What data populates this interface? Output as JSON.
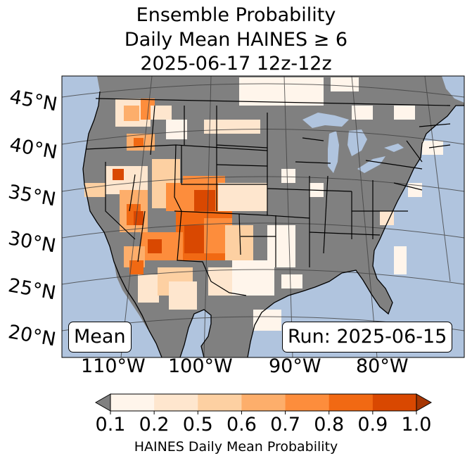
{
  "title": {
    "line1": "Ensemble Probability",
    "line2": "Daily Mean HAINES ≥ 6",
    "line3": "2025-06-17 12z-12z"
  },
  "map": {
    "lat_labels": [
      "45°N",
      "40°N",
      "35°N",
      "30°N",
      "25°N",
      "20°N"
    ],
    "lon_labels": [
      "110°W",
      "100°W",
      "90°W",
      "80°W"
    ],
    "mean_label": "Mean",
    "run_label": "Run: 2025-06-15",
    "colors": {
      "ocean": "#b0c4de",
      "land": "#808080",
      "lakes": "#b0c4de"
    }
  },
  "colorbar": {
    "ticks": [
      "0.1",
      "0.2",
      "0.5",
      "0.6",
      "0.7",
      "0.8",
      "0.9",
      "1.0"
    ],
    "colors": [
      "#fff5eb",
      "#fee6ce",
      "#fdd0a2",
      "#fdae6b",
      "#fd8d3c",
      "#f16913",
      "#d94801",
      "#a63603"
    ],
    "under_color": "#808080",
    "label": "HAINES Daily Mean Probability"
  }
}
